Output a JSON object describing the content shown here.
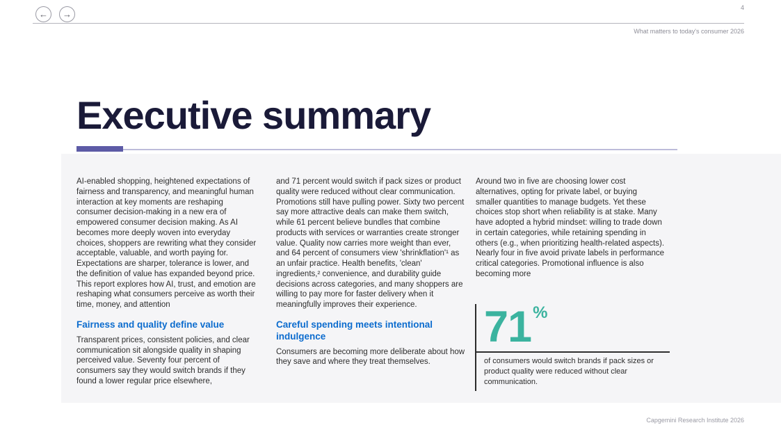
{
  "header": {
    "page_number": "4",
    "report_title": "What matters to today's consumer 2026",
    "back_icon": "←",
    "forward_icon": "→"
  },
  "page": {
    "title": "Executive summary"
  },
  "columns": {
    "col1": {
      "intro": "AI-enabled shopping, heightened expectations of fairness and transparency, and meaningful human interaction at key moments are reshaping consumer decision-making in a new era of empowered consumer decision making. As AI becomes more deeply woven into everyday choices, shoppers are rewriting what they consider acceptable, valuable, and worth paying for. Expectations are sharper, tolerance is lower, and the definition of value has expanded beyond price. This report explores how AI, trust, and emotion are reshaping what consumers perceive as worth their time, money, and attention",
      "heading": "Fairness and quality define value",
      "body": "Transparent prices, consistent policies, and clear communication sit alongside quality in shaping perceived value. Seventy four percent of consumers say they would switch brands if they found a lower regular price elsewhere,"
    },
    "col2": {
      "intro": "and 71 percent would switch if pack sizes or product quality were reduced without clear communication. Promotions still have pulling power. Sixty two percent say more attractive deals can make them switch, while 61 percent believe bundles that combine products with services or warranties create stronger value. Quality now carries more weight than ever, and 64 percent of consumers view 'shrinkflation'¹ as an unfair practice. Health benefits, 'clean' ingredients,² convenience, and durability guide decisions across categories, and many shoppers are willing to pay more for faster delivery when it meaningfully improves their experience.",
      "heading": "Careful spending meets intentional indulgence",
      "body": "Consumers are becoming more deliberate about how they save and where they treat themselves."
    },
    "col3": {
      "intro": "Around two in five are choosing lower cost alternatives, opting for private label, or buying smaller quantities to manage budgets. Yet these choices stop short when reliability is at stake. Many have adopted a hybrid mindset: willing to trade down in certain categories, while retaining spending in others (e.g., when prioritizing health-related aspects). Nearly four in five avoid private labels in performance critical categories. Promotional influence is also becoming more"
    }
  },
  "stat": {
    "value": "71",
    "unit": "%",
    "caption": "of consumers would switch brands if pack sizes or product quality were reduced without clear communication."
  },
  "footer": {
    "credit": "Capgemini Research Institute 2026"
  },
  "colors": {
    "accent_purple": "#5d5ba6",
    "heading_blue": "#0c6cce",
    "stat_teal": "#3bb39f",
    "title_navy": "#1a1a38",
    "content_box_bg": "#f5f5f7",
    "muted_gray": "#8e8e98"
  }
}
